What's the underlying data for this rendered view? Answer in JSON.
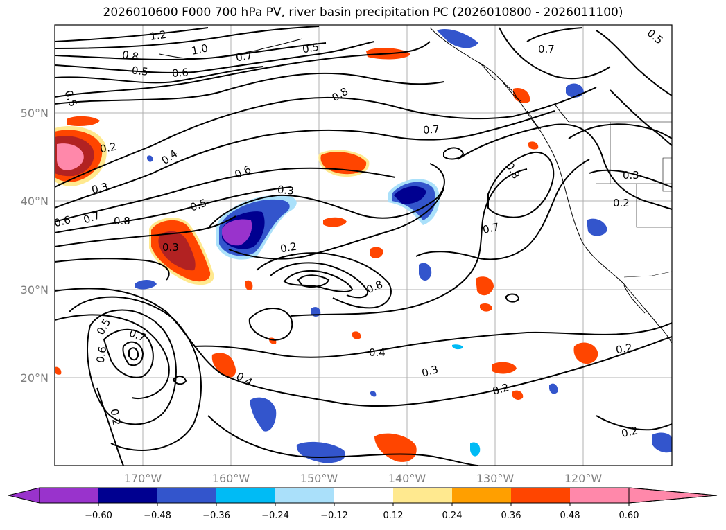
{
  "title": "2026010600 F000 700 hPa PV, river basin precipitation PC (2026010800 - 2026011100)",
  "axes": {
    "lat_labels": [
      "50°N",
      "40°N",
      "30°N",
      "20°N"
    ],
    "lon_labels": [
      "170°W",
      "160°W",
      "150°W",
      "140°W",
      "130°W",
      "120°W"
    ]
  },
  "colorbar": {
    "ticks": [
      "−0.60",
      "−0.48",
      "−0.36",
      "−0.24",
      "−0.12",
      "0.12",
      "0.24",
      "0.36",
      "0.48",
      "0.60"
    ],
    "colors": [
      "#9933cc",
      "#000090",
      "#3355cc",
      "#00bbf5",
      "#aae0fa",
      "#ffffff",
      "#ffe98f",
      "#ff9f00",
      "#ff4500",
      "#b22222",
      "#ff88aa"
    ]
  },
  "contour_labels": [
    "1.2",
    "1.0",
    "0.8",
    "0.7",
    "0.5",
    "0.6",
    "0.5",
    "0.8",
    "0.7",
    "0.5",
    "0.5",
    "0.2",
    "0.4",
    "0.3",
    "0.6",
    "0.7",
    "0.5",
    "0.6",
    "0.8",
    "0.3",
    "0.3",
    "0.2",
    "0.8",
    "0.3",
    "0.2",
    "0.7",
    "0.7",
    "0.8",
    "0.5",
    "0.7",
    "0.6",
    "0.4",
    "0.4",
    "0.3",
    "0.2",
    "0.2",
    "0.2",
    "0.2"
  ]
}
